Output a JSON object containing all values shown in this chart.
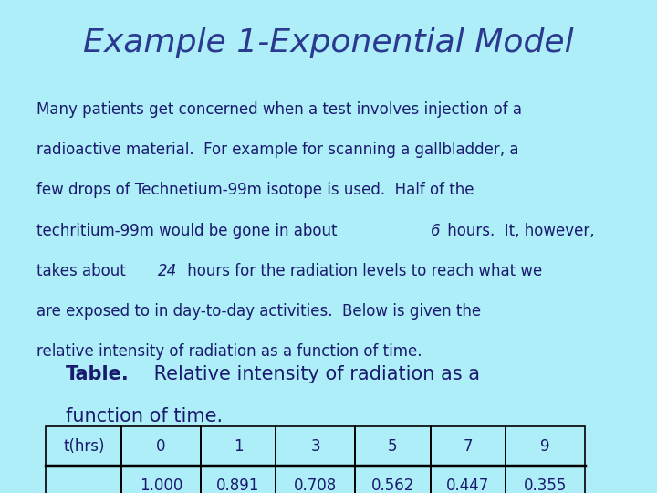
{
  "title": "Example 1-Exponential Model",
  "title_color": "#2B3A8F",
  "background_color": "#AEEEF8",
  "body_lines": [
    {
      "text": "Many patients get concerned when a test involves injection of a",
      "mixed": false
    },
    {
      "text": "radioactive material.  For example for scanning a gallbladder, a",
      "mixed": false
    },
    {
      "text": "few drops of Technetium-99m isotope is used.  Half of the",
      "mixed": false
    },
    {
      "parts": [
        "techritium-99m would be gone in about ",
        "6",
        " hours.  It, however,"
      ],
      "mixed": true
    },
    {
      "parts": [
        "takes about ",
        "24",
        " hours for the radiation levels to reach what we"
      ],
      "mixed": true
    },
    {
      "text": "are exposed to in day-to-day activities.  Below is given the",
      "mixed": false
    },
    {
      "text": "relative intensity of radiation as a function of time.",
      "mixed": false
    }
  ],
  "table_caption_bold": "Table.",
  "table_caption_rest": " Relative intensity of radiation as a",
  "table_caption_line2": "function of time.",
  "table_headers": [
    "t(hrs)",
    "0",
    "1",
    "3",
    "5",
    "7",
    "9"
  ],
  "table_values": [
    "",
    "1.000",
    "0.891",
    "0.708",
    "0.562",
    "0.447",
    "0.355"
  ],
  "text_color": "#1a1a6e",
  "font_size_title": 26,
  "font_size_body": 12,
  "font_size_table": 12,
  "font_size_caption": 15
}
